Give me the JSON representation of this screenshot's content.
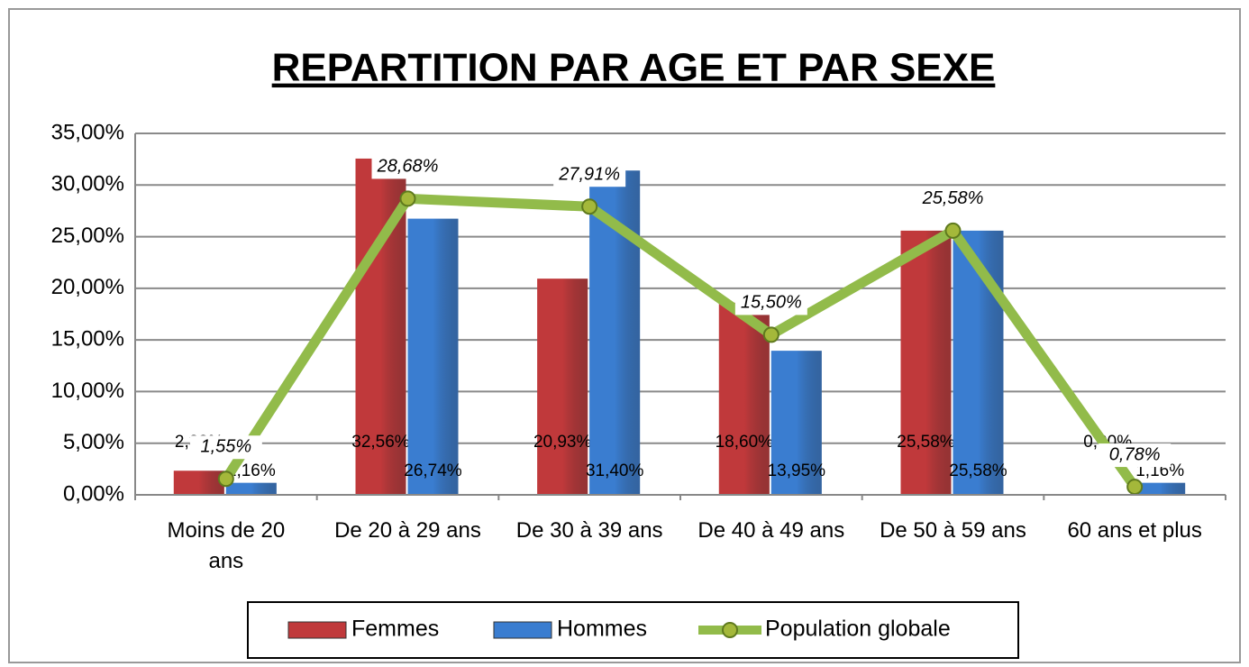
{
  "chart_data": {
    "type": "bar",
    "title": "REPARTITION PAR AGE ET PAR SEXE",
    "categories": [
      "Moins de 20 ans",
      "De 20 à 29 ans",
      "De 30 à 39 ans",
      "De 40 à 49 ans",
      "De 50 à 59 ans",
      "60 ans et plus"
    ],
    "series": [
      {
        "name": "Femmes",
        "color": "#c0393b",
        "type": "bar",
        "values": [
          2.33,
          32.56,
          20.93,
          18.6,
          25.58,
          0.0
        ],
        "value_labels": [
          "2,33%",
          "32,56%",
          "20,93%",
          "18,60%",
          "25,58%",
          "0,00%"
        ]
      },
      {
        "name": "Hommes",
        "color": "#3a7dd0",
        "type": "bar",
        "values": [
          1.16,
          26.74,
          31.4,
          13.95,
          25.58,
          1.16
        ],
        "value_labels": [
          "1,16%",
          "26,74%",
          "31,40%",
          "13,95%",
          "25,58%",
          "1,16%"
        ]
      },
      {
        "name": "Population globale",
        "color": "#92bb4a",
        "type": "line",
        "values": [
          1.55,
          28.68,
          27.91,
          15.5,
          25.58,
          0.78
        ],
        "value_labels": [
          "1,55%",
          "28,68%",
          "27,91%",
          "15,50%",
          "25,58%",
          "0,78%"
        ]
      }
    ],
    "ylim": [
      0,
      35
    ],
    "yticks": [
      {
        "value": 0,
        "label": "0,00%"
      },
      {
        "value": 5,
        "label": "5,00%"
      },
      {
        "value": 10,
        "label": "10,00%"
      },
      {
        "value": 15,
        "label": "15,00%"
      },
      {
        "value": 20,
        "label": "20,00%"
      },
      {
        "value": 25,
        "label": "25,00%"
      },
      {
        "value": 30,
        "label": "30,00%"
      },
      {
        "value": 35,
        "label": "35,00%"
      }
    ],
    "grid": true,
    "legend": "bottom"
  }
}
